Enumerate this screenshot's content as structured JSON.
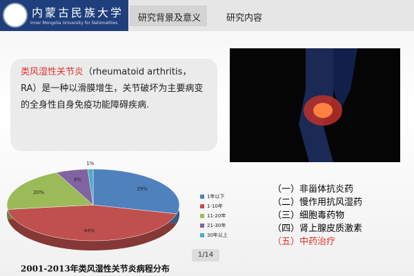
{
  "header": {
    "logo_name": "内蒙古民族大学",
    "logo_subtitle": "Inner Mongolia University for Nationalities",
    "tabs": [
      "研究背景及意义",
      "研究内容"
    ]
  },
  "intro": {
    "term": "类风湿性关节炎",
    "text": "（rheumatoid arthritis，RA）是一种以滑膜增生，关节破坏为主要病变的全身性自身免疫功能障碍疾病."
  },
  "chart_data": {
    "type": "pie",
    "title": "2001-2013年类风湿性关节炎病程分布",
    "categories": [
      "1年以下",
      "1-10年",
      "11-20年",
      "21-30年",
      "30年以上"
    ],
    "values": [
      29,
      44,
      20,
      6,
      1
    ],
    "value_labels": [
      "29%",
      "44%",
      "20%",
      "6%",
      "1%"
    ],
    "colors": [
      "#4f81bd",
      "#c0504d",
      "#9bbb59",
      "#8064a2",
      "#4bacc6"
    ]
  },
  "treatments": [
    "（一）非甾体抗炎药",
    "（二）慢作用抗风湿药",
    "（三）细胞毒药物",
    "（四）肾上腺皮质激素",
    "（五）中药治疗"
  ],
  "page_number": "1/14"
}
